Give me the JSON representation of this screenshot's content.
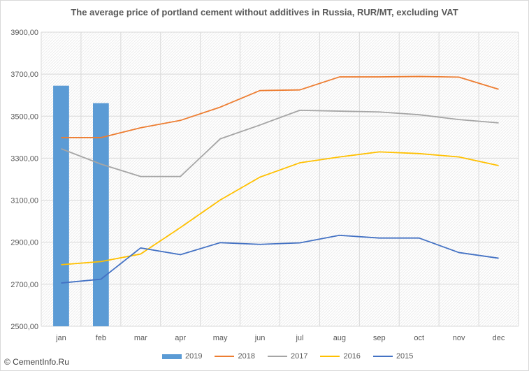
{
  "chart_data": {
    "type": "bar+line",
    "title": "The average price of portland cement without additives in Russia, RUR/MT, excluding VAT",
    "categories": [
      "jan",
      "feb",
      "mar",
      "apr",
      "may",
      "jun",
      "jul",
      "aug",
      "sep",
      "oct",
      "nov",
      "dec"
    ],
    "y_ticks": [
      "2500,00",
      "2700,00",
      "2900,00",
      "3100,00",
      "3300,00",
      "3500,00",
      "3700,00",
      "3900,00"
    ],
    "ylim": [
      2500,
      3900
    ],
    "grid": true,
    "legend_position": "bottom",
    "series": [
      {
        "name": "2019",
        "kind": "bar",
        "color": "#5b9bd5",
        "values": [
          3645,
          3562,
          null,
          null,
          null,
          null,
          null,
          null,
          null,
          null,
          null,
          null
        ]
      },
      {
        "name": "2018",
        "kind": "line",
        "color": "#ed7d31",
        "values": [
          3398,
          3398,
          3445,
          3480,
          3543,
          3622,
          3625,
          3687,
          3687,
          3689,
          3686,
          3628
        ]
      },
      {
        "name": "2017",
        "kind": "line",
        "color": "#a5a5a5",
        "values": [
          3345,
          3272,
          3213,
          3213,
          3392,
          3458,
          3528,
          3524,
          3520,
          3507,
          3484,
          3468
        ]
      },
      {
        "name": "2016",
        "kind": "line",
        "color": "#ffc000",
        "values": [
          2793,
          2808,
          2844,
          2970,
          3101,
          3210,
          3278,
          3306,
          3330,
          3322,
          3306,
          3265
        ]
      },
      {
        "name": "2015",
        "kind": "line",
        "color": "#4472c4",
        "values": [
          2706,
          2724,
          2873,
          2841,
          2898,
          2890,
          2897,
          2933,
          2920,
          2920,
          2851,
          2824
        ]
      }
    ]
  },
  "source_label": "© CementInfo.Ru"
}
